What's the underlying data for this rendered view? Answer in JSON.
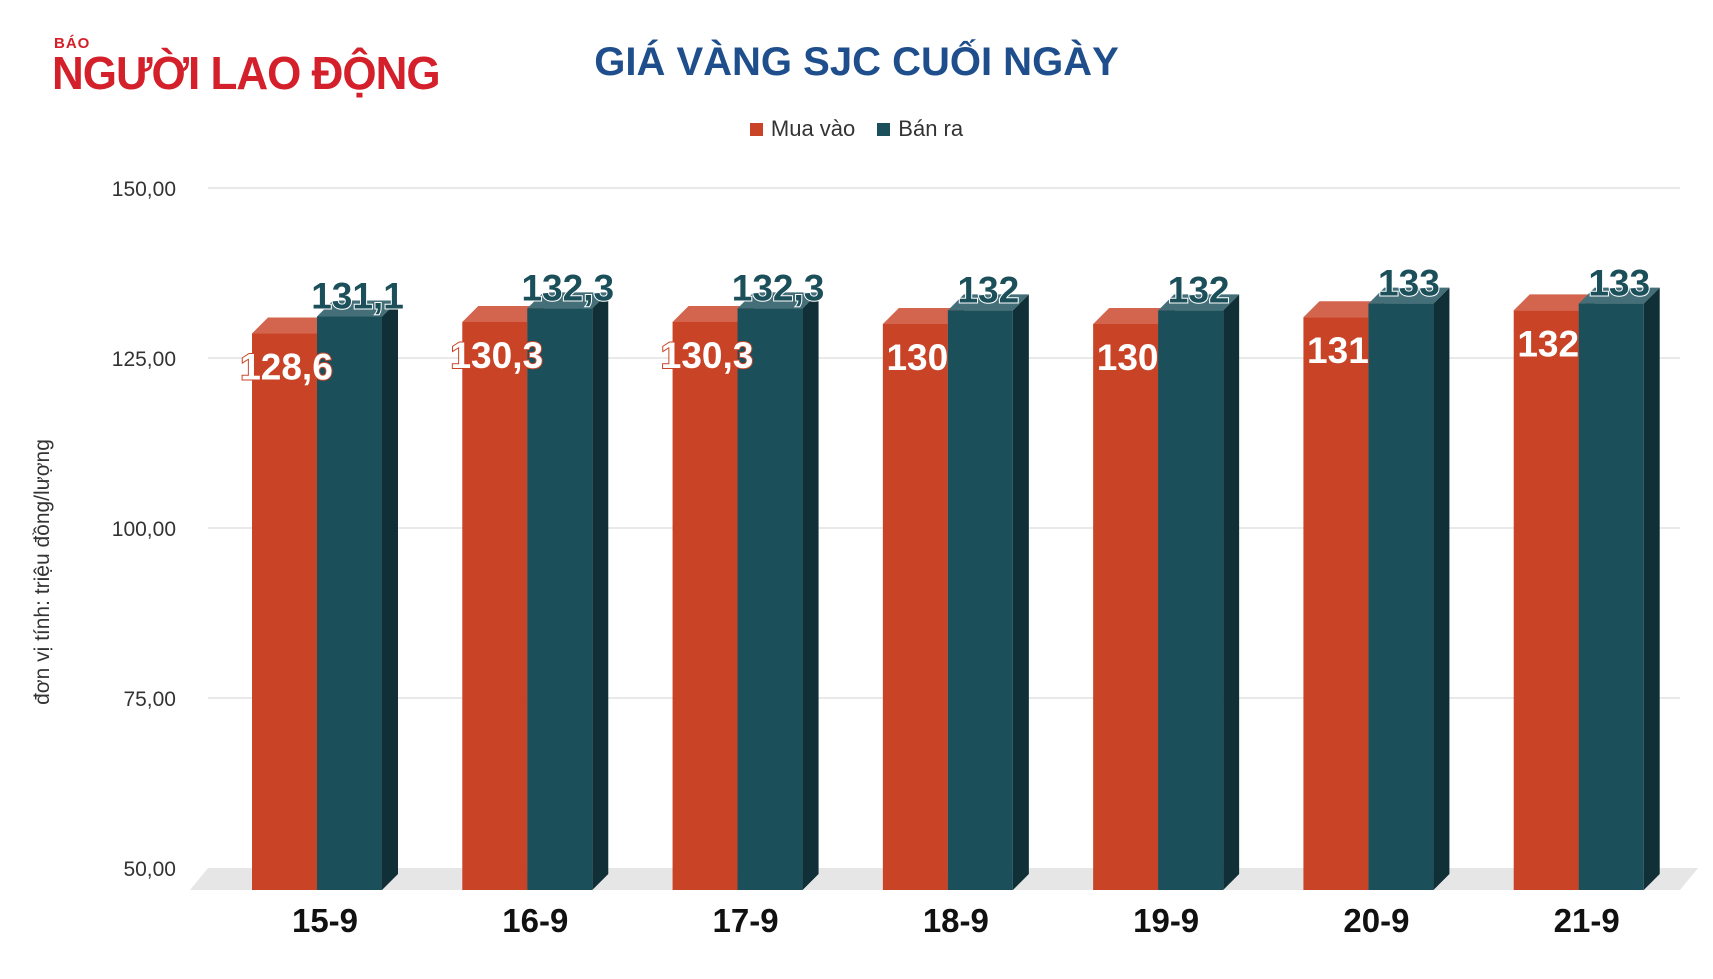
{
  "logo": {
    "small": "BÁO",
    "main": "NGƯỜI LAO ĐỘNG"
  },
  "chart_data": {
    "type": "bar",
    "title": "GIÁ VÀNG SJC CUỐI NGÀY",
    "ylabel": "đơn vị tính: triệu đồng/lượng",
    "xlabel": "",
    "categories": [
      "15-9",
      "16-9",
      "17-9",
      "18-9",
      "19-9",
      "20-9",
      "21-9"
    ],
    "series": [
      {
        "name": "Mua vào",
        "color": "#c94327",
        "values": [
          128.6,
          130.3,
          130.3,
          130,
          130,
          131,
          132
        ],
        "labels": [
          "128,6",
          "130,3",
          "130,3",
          "130",
          "130",
          "131",
          "132"
        ]
      },
      {
        "name": "Bán ra",
        "color": "#1b4f5a",
        "values": [
          131.1,
          132.3,
          132.3,
          132,
          132,
          133,
          133
        ],
        "labels": [
          "131,1",
          "132,3",
          "132,3",
          "132",
          "132",
          "133",
          "133"
        ]
      }
    ],
    "ylim": [
      50,
      150
    ],
    "yticks": [
      "50,00",
      "75,00",
      "100,00",
      "125,00",
      "150,00"
    ],
    "grid": true,
    "legend": "top-center",
    "style": "3d-bar"
  }
}
